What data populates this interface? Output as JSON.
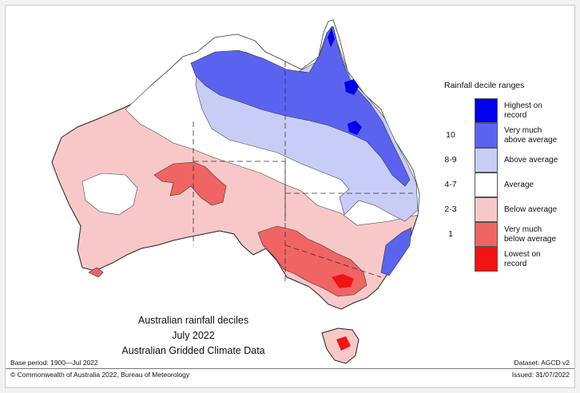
{
  "map": {
    "title_lines": [
      "Australian rainfall deciles",
      "July 2022",
      "Australian Gridded Climate Data"
    ],
    "base_period": "Base period: 1900—Jul 2022",
    "dataset": "Dataset: AGCD v2",
    "copyright": "© Commonwealth of Australia 2022, Bureau of Meteorology",
    "issued": "Issued: 31/07/2022"
  },
  "legend": {
    "title": "Rainfall decile ranges",
    "items": [
      {
        "decile": "",
        "label": "Highest on\nrecord",
        "color": "#0000ee"
      },
      {
        "decile": "10",
        "label": "Very much\nabove average",
        "color": "#5a63f0"
      },
      {
        "decile": "8-9",
        "label": "Above average",
        "color": "#c8cdf8"
      },
      {
        "decile": "4-7",
        "label": "Average",
        "color": "#ffffff"
      },
      {
        "decile": "2-3",
        "label": "Below average",
        "color": "#f8c8c8"
      },
      {
        "decile": "1",
        "label": "Very much\nbelow average",
        "color": "#f06464"
      },
      {
        "decile": "",
        "label": "Lowest on\nrecord",
        "color": "#f01414"
      }
    ]
  }
}
